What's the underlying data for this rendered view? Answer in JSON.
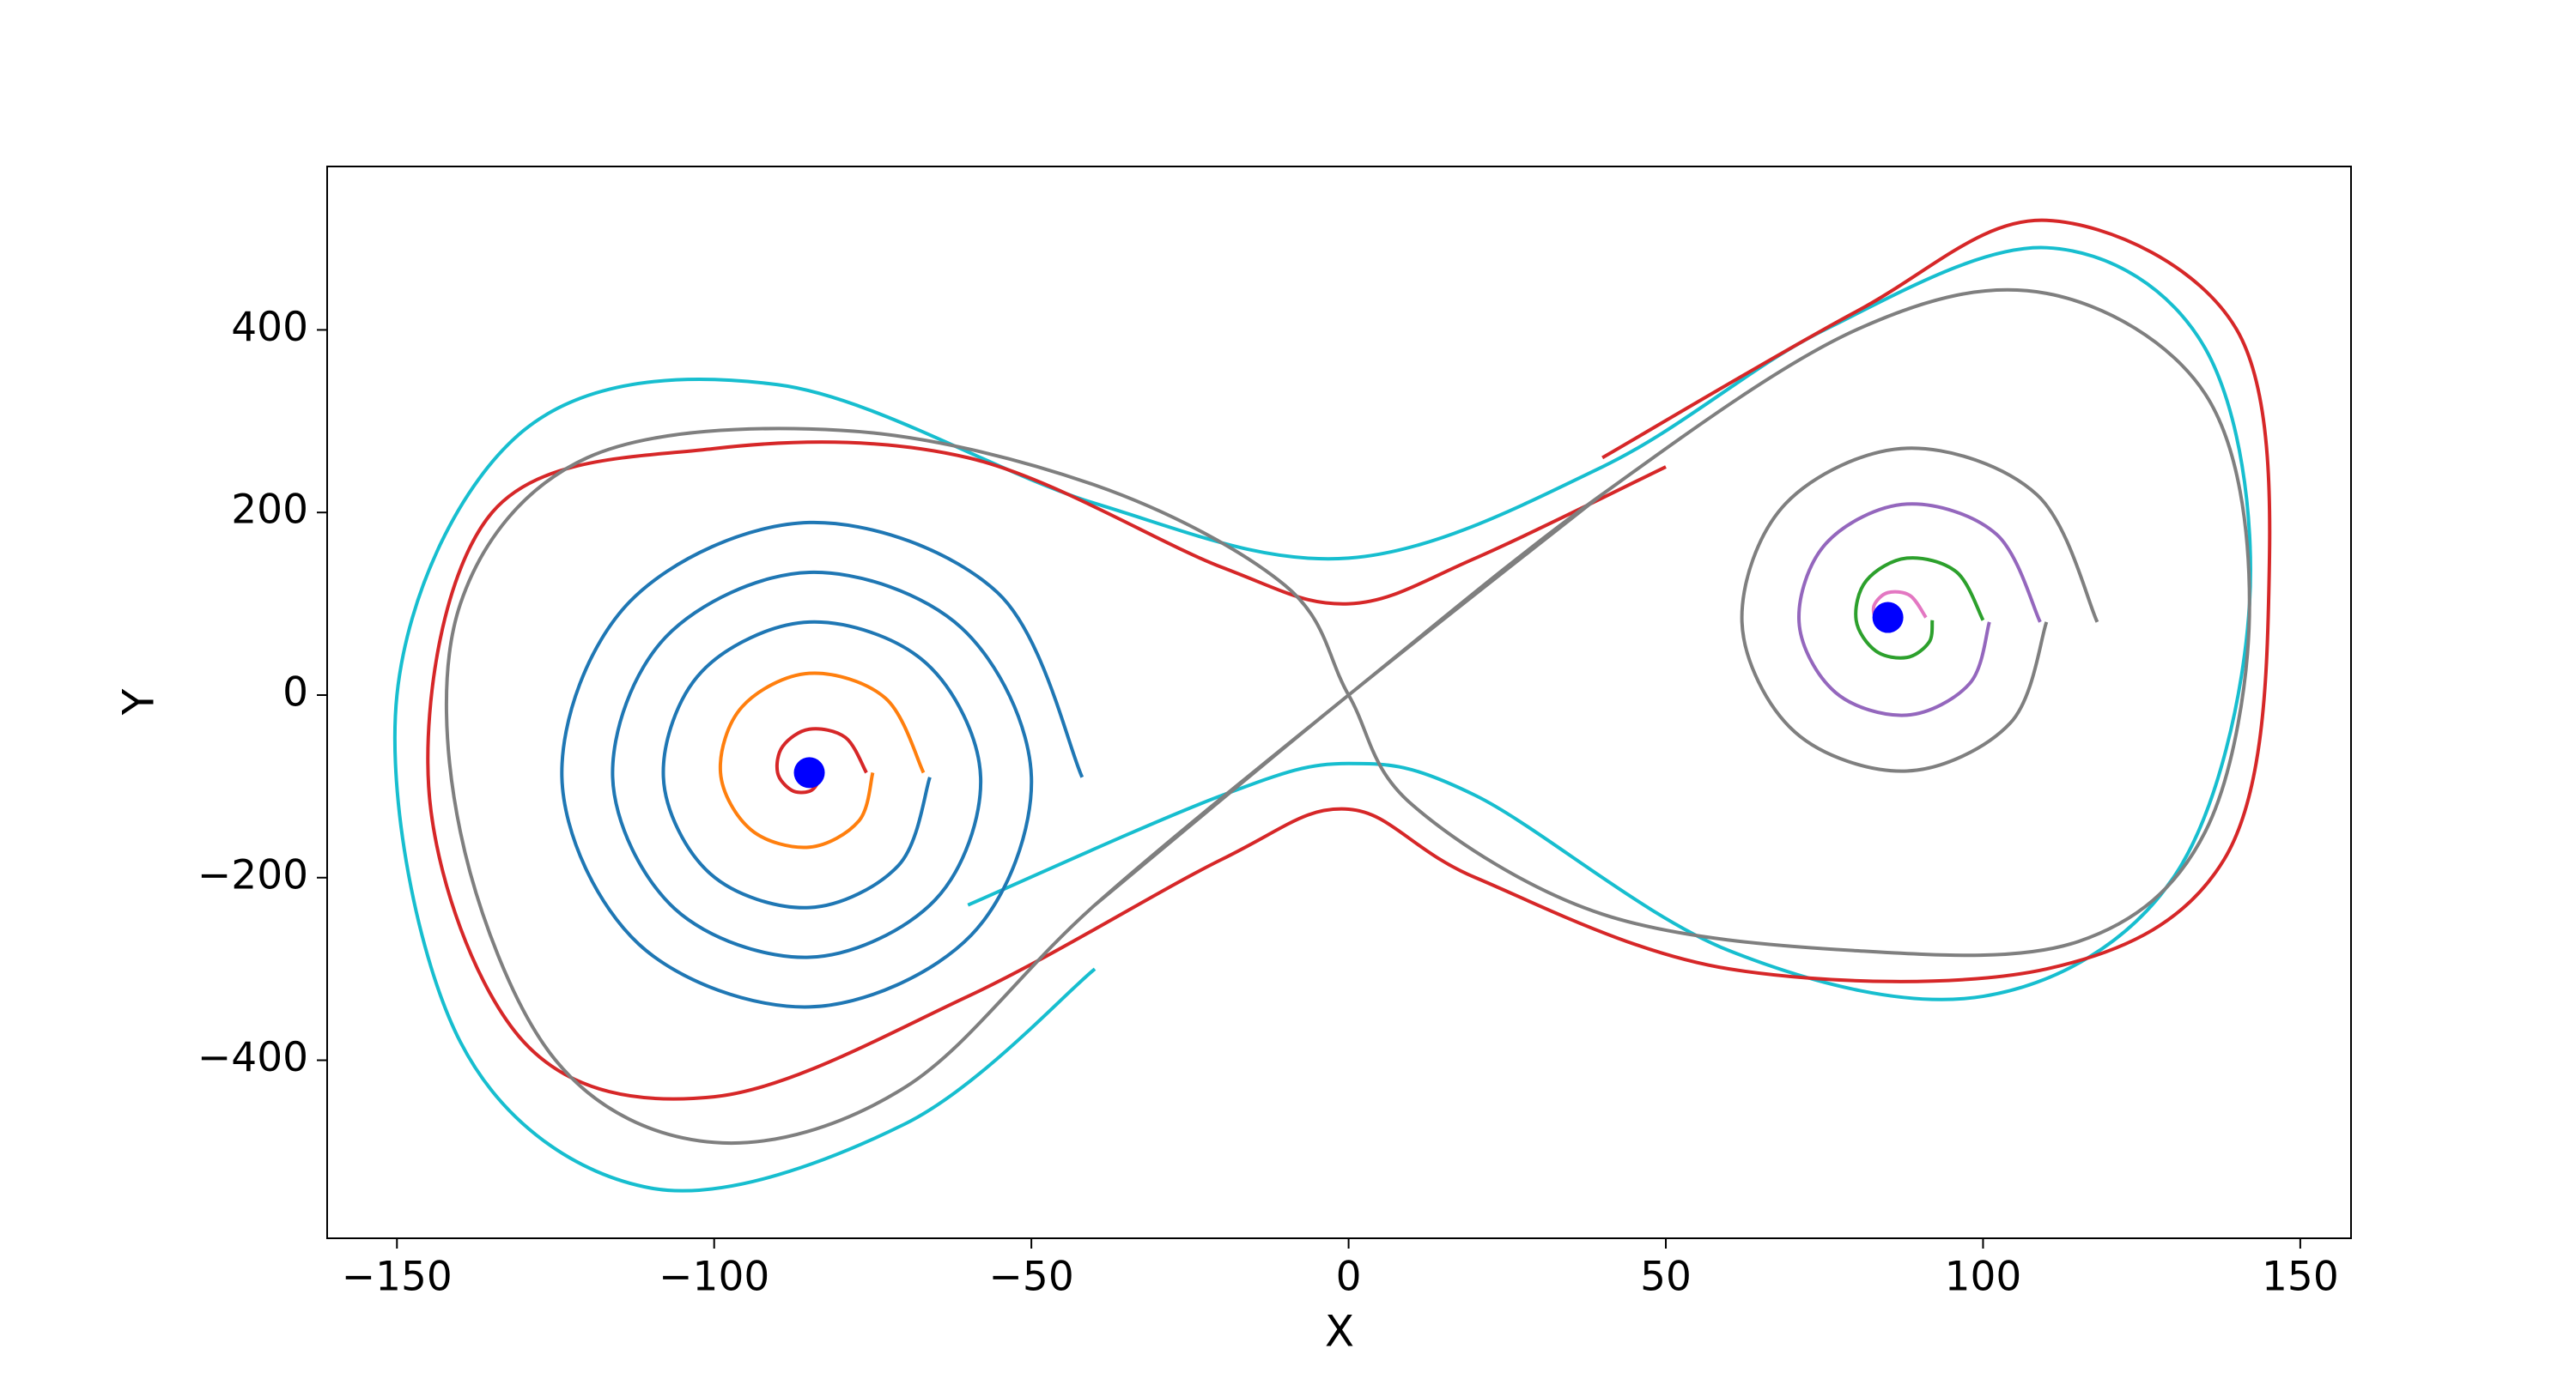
{
  "chart_data": {
    "type": "line",
    "xlabel": "X",
    "ylabel": "Y",
    "xlim": [
      -161,
      158
    ],
    "ylim": [
      -595,
      579
    ],
    "xticks": [
      {
        "value": -150,
        "label": "−150"
      },
      {
        "value": -100,
        "label": "−100"
      },
      {
        "value": -50,
        "label": "−50"
      },
      0,
      50,
      100,
      150
    ],
    "yticks": [
      {
        "value": -400,
        "label": "−400"
      },
      {
        "value": -200,
        "label": "−200"
      },
      0,
      200,
      400
    ],
    "series": [
      {
        "color": "#17becf",
        "x": [
          -60,
          -20,
          0,
          20,
          60,
          100,
          130,
          142,
          135,
          110,
          75,
          40,
          0,
          -40,
          -90,
          -130,
          -150,
          -140,
          -110,
          -70,
          -40
        ],
        "y": [
          -230,
          -110,
          -75,
          -110,
          -280,
          -330,
          -200,
          100,
          380,
          490,
          400,
          250,
          150,
          210,
          340,
          290,
          0,
          -380,
          -540,
          -470,
          -300
        ]
      },
      {
        "color": "#d62728",
        "x": [
          40,
          80,
          110,
          140,
          145,
          138,
          110,
          60,
          20,
          0,
          -20,
          -60,
          -100,
          -130,
          -145,
          -135,
          -100,
          -60,
          -20,
          0,
          20,
          50
        ],
        "y": [
          260,
          420,
          520,
          400,
          100,
          -180,
          -300,
          -300,
          -200,
          -125,
          -180,
          -330,
          -440,
          -380,
          -100,
          200,
          270,
          260,
          140,
          100,
          150,
          250
        ]
      },
      {
        "color": "#7f7f7f",
        "x": [
          -40,
          0,
          40,
          80,
          110,
          135,
          142,
          135,
          115,
          80,
          40,
          10,
          0,
          -10,
          -40,
          -80,
          -120,
          -140,
          -140,
          -125,
          -100,
          -70,
          -40,
          0,
          40
        ],
        "y": [
          -230,
          0,
          220,
          400,
          440,
          330,
          100,
          -150,
          -270,
          -280,
          -240,
          -120,
          0,
          120,
          230,
          290,
          260,
          100,
          -150,
          -400,
          -490,
          -430,
          -230,
          0,
          220
        ]
      },
      {
        "color": "#1f77b4",
        "x": [
          -42,
          -55.3,
          -85,
          -113.3,
          -124,
          -111.9,
          -85,
          -59.5,
          -50,
          -61,
          -85,
          -107.6,
          -116,
          -106.2,
          -85,
          -65.2,
          -58,
          -66.6,
          -85,
          -102,
          -108,
          -100.6,
          -85,
          -70.9,
          -66
        ],
        "y": [
          -90,
          112,
          189,
          102.3,
          -90,
          -272.7,
          -341.6,
          -263.1,
          -90,
          73.5,
          134.4,
          63.8,
          -90,
          -234.2,
          -287.2,
          -224.6,
          -90,
          35,
          80,
          25.4,
          -90,
          -195.8,
          -232.8,
          -186.2,
          -90
        ]
      },
      {
        "color": "#ff7f0e",
        "x": [
          -67,
          -73,
          -85,
          -95.6,
          -99,
          -94.2,
          -85,
          -77.2,
          -75
        ],
        "y": [
          -85,
          -3.4,
          23.8,
          -12.9,
          -85,
          -147.5,
          -166.6,
          -137.9,
          -85
        ]
      },
      {
        "color": "#d62728",
        "x": [
          -76,
          -79.3,
          -85,
          -89.2,
          -90,
          -87.8,
          -85,
          -83.6,
          -84
        ],
        "y": [
          -85,
          -46.5,
          -37.4,
          -56.2,
          -85,
          -104.2,
          -105.4,
          -94.6,
          -85
        ]
      },
      {
        "color": "#7f7f7f",
        "x": [
          118,
          108.5,
          88,
          68.9,
          62,
          70.3,
          88,
          104.3,
          110
        ],
        "y": [
          80,
          219.4,
          270.4,
          209.8,
          80,
          -40.2,
          -83.2,
          -30.6,
          80
        ]
      },
      {
        "color": "#9467bd",
        "x": [
          109,
          102.1,
          88,
          75.3,
          71,
          76.7,
          88,
          97.9,
          101
        ],
        "y": [
          80,
          176.2,
          209.2,
          166.5,
          80,
          3.1,
          -22,
          12.7,
          80
        ]
      },
      {
        "color": "#2ca02c",
        "x": [
          100,
          95.8,
          88,
          81.6,
          80,
          83.1,
          88,
          91.5,
          92
        ],
        "y": [
          82,
          134.9,
          150,
          125.3,
          82,
          48.3,
          41.2,
          58,
          82
        ]
      },
      {
        "color": "#e377c2",
        "x": [
          91,
          88.5,
          85,
          82.9,
          83,
          84.3
        ],
        "y": [
          85,
          109,
          112.2,
          99.4,
          85,
          80.2
        ]
      }
    ],
    "points": {
      "color": "#0000ff",
      "x": [
        -85,
        85
      ],
      "y": [
        -85,
        85
      ]
    }
  }
}
